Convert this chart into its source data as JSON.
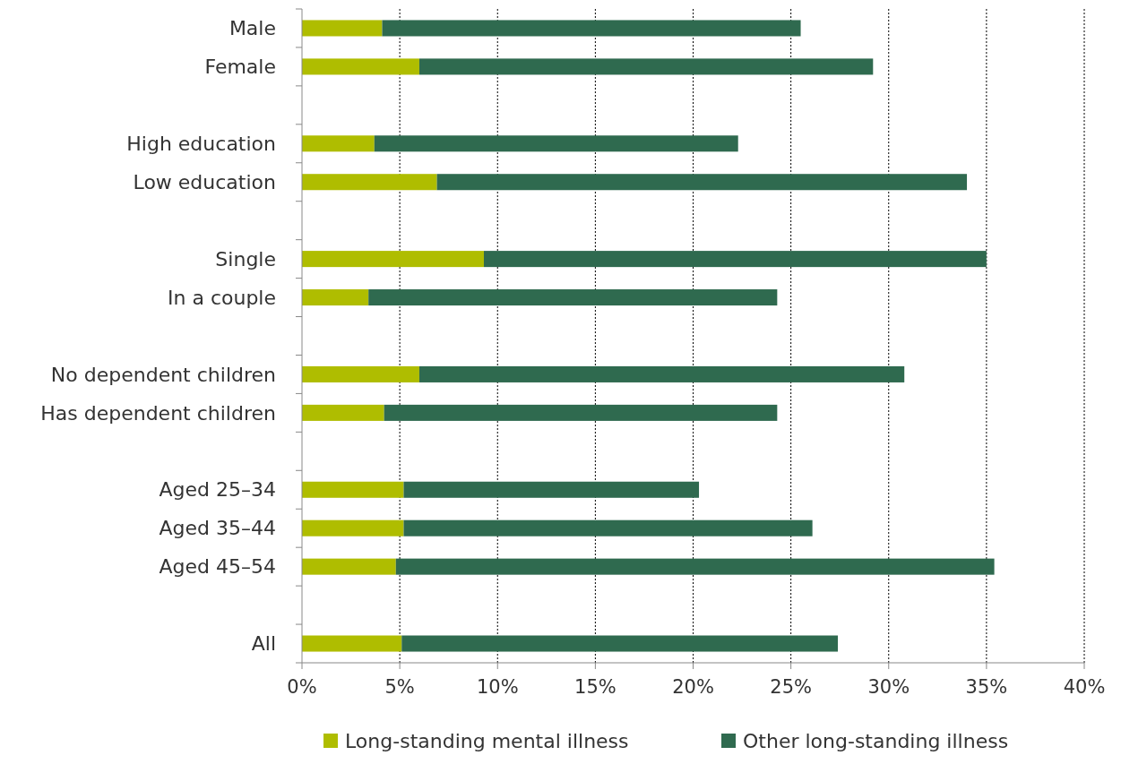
{
  "chart_data": {
    "type": "bar",
    "orientation": "horizontal",
    "stacked": true,
    "categories": [
      "Male",
      "Female",
      null,
      "High education",
      "Low education",
      null,
      "Single",
      "In a couple",
      null,
      "No dependent children",
      "Has dependent children",
      null,
      "Aged 25–34",
      "Aged 35–44",
      "Aged 45–54",
      null,
      "All"
    ],
    "series": [
      {
        "name": "Long-standing mental illness",
        "color": "#afbd00",
        "values": [
          4.1,
          6.0,
          null,
          3.7,
          6.9,
          null,
          9.3,
          3.4,
          null,
          6.0,
          4.2,
          null,
          5.2,
          5.2,
          4.8,
          null,
          5.1
        ]
      },
      {
        "name": "Other long-standing illness",
        "color": "#2f6a4f",
        "values": [
          21.4,
          23.2,
          null,
          18.6,
          27.1,
          null,
          25.7,
          20.9,
          null,
          24.8,
          20.1,
          null,
          15.1,
          20.9,
          30.6,
          null,
          22.3
        ]
      }
    ],
    "xlim": [
      0,
      40
    ],
    "xticks": [
      {
        "value": 0,
        "label": "0%"
      },
      {
        "value": 5,
        "label": "5%"
      },
      {
        "value": 10,
        "label": "10%"
      },
      {
        "value": 15,
        "label": "15%"
      },
      {
        "value": 20,
        "label": "20%"
      },
      {
        "value": 25,
        "label": "25%"
      },
      {
        "value": 30,
        "label": "30%"
      },
      {
        "value": 35,
        "label": "35%"
      },
      {
        "value": 40,
        "label": "40%"
      }
    ],
    "grid": "x",
    "legend": "bottom"
  }
}
